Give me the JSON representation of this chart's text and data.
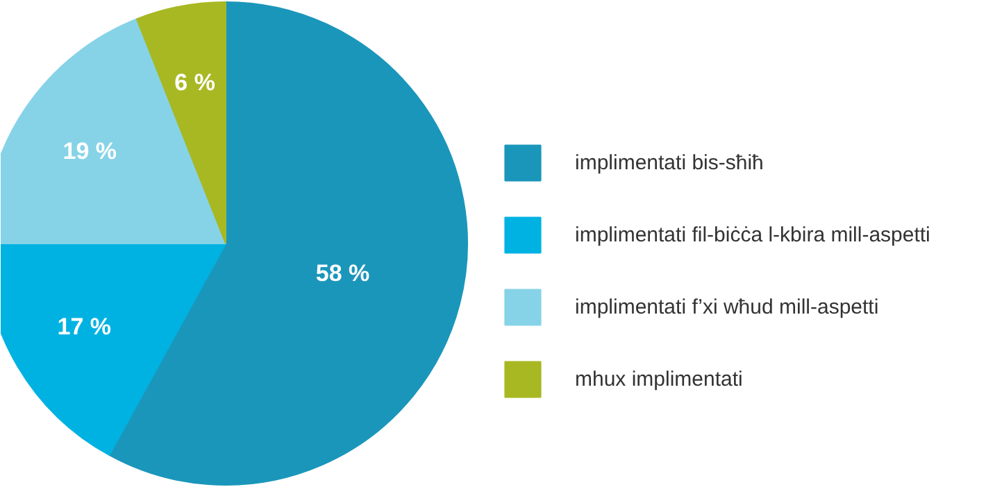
{
  "chart_data": {
    "type": "pie",
    "categories": [
      "implimentati bis-sħiħ",
      "implimentati fil-biċċa l-kbira mill-aspetti",
      "implimentati f’xi wħud mill-aspetti",
      "mhux implimentati"
    ],
    "values": [
      58,
      17,
      19,
      6
    ],
    "colors": [
      "#1b96bb",
      "#00b2e2",
      "#86d3e8",
      "#a8b822"
    ],
    "value_labels": [
      "58 %",
      "17 %",
      "19 %",
      "6 %"
    ],
    "legend": "right"
  }
}
